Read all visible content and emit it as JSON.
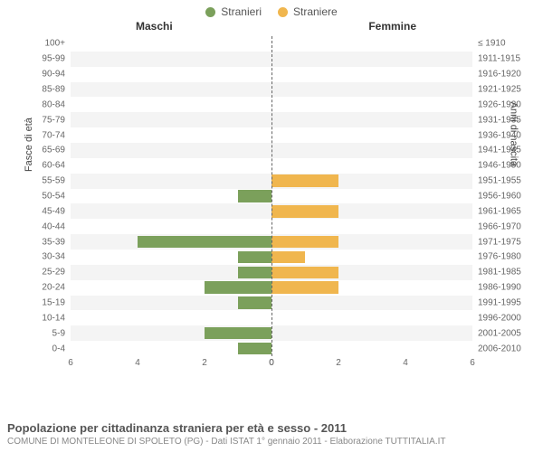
{
  "legend": {
    "male": {
      "label": "Stranieri",
      "color": "#7ba05b"
    },
    "female": {
      "label": "Straniere",
      "color": "#f0b64e"
    }
  },
  "half_titles": {
    "left": "Maschi",
    "right": "Femmine"
  },
  "y_titles": {
    "left": "Fasce di età",
    "right": "Anni di nascita"
  },
  "x_axis": {
    "max": 6,
    "ticks": [
      6,
      4,
      2,
      0,
      2,
      4,
      6
    ]
  },
  "rows": [
    {
      "age": "100+",
      "birth": "≤ 1910",
      "m": 0,
      "f": 0
    },
    {
      "age": "95-99",
      "birth": "1911-1915",
      "m": 0,
      "f": 0
    },
    {
      "age": "90-94",
      "birth": "1916-1920",
      "m": 0,
      "f": 0
    },
    {
      "age": "85-89",
      "birth": "1921-1925",
      "m": 0,
      "f": 0
    },
    {
      "age": "80-84",
      "birth": "1926-1930",
      "m": 0,
      "f": 0
    },
    {
      "age": "75-79",
      "birth": "1931-1935",
      "m": 0,
      "f": 0
    },
    {
      "age": "70-74",
      "birth": "1936-1940",
      "m": 0,
      "f": 0
    },
    {
      "age": "65-69",
      "birth": "1941-1945",
      "m": 0,
      "f": 0
    },
    {
      "age": "60-64",
      "birth": "1946-1950",
      "m": 0,
      "f": 0
    },
    {
      "age": "55-59",
      "birth": "1951-1955",
      "m": 0,
      "f": 2
    },
    {
      "age": "50-54",
      "birth": "1956-1960",
      "m": 1,
      "f": 0
    },
    {
      "age": "45-49",
      "birth": "1961-1965",
      "m": 0,
      "f": 2
    },
    {
      "age": "40-44",
      "birth": "1966-1970",
      "m": 0,
      "f": 0
    },
    {
      "age": "35-39",
      "birth": "1971-1975",
      "m": 4,
      "f": 2
    },
    {
      "age": "30-34",
      "birth": "1976-1980",
      "m": 1,
      "f": 1
    },
    {
      "age": "25-29",
      "birth": "1981-1985",
      "m": 1,
      "f": 2
    },
    {
      "age": "20-24",
      "birth": "1986-1990",
      "m": 2,
      "f": 2
    },
    {
      "age": "15-19",
      "birth": "1991-1995",
      "m": 1,
      "f": 0
    },
    {
      "age": "10-14",
      "birth": "1996-2000",
      "m": 0,
      "f": 0
    },
    {
      "age": "5-9",
      "birth": "2001-2005",
      "m": 2,
      "f": 0
    },
    {
      "age": "0-4",
      "birth": "2006-2010",
      "m": 1,
      "f": 0
    }
  ],
  "colors": {
    "bg": "#ffffff",
    "row_band": "#f4f4f4",
    "center_line": "#666666"
  },
  "footer": {
    "title": "Popolazione per cittadinanza straniera per età e sesso - 2011",
    "subtitle": "COMUNE DI MONTELEONE DI SPOLETO (PG) - Dati ISTAT 1° gennaio 2011 - Elaborazione TUTTITALIA.IT"
  }
}
